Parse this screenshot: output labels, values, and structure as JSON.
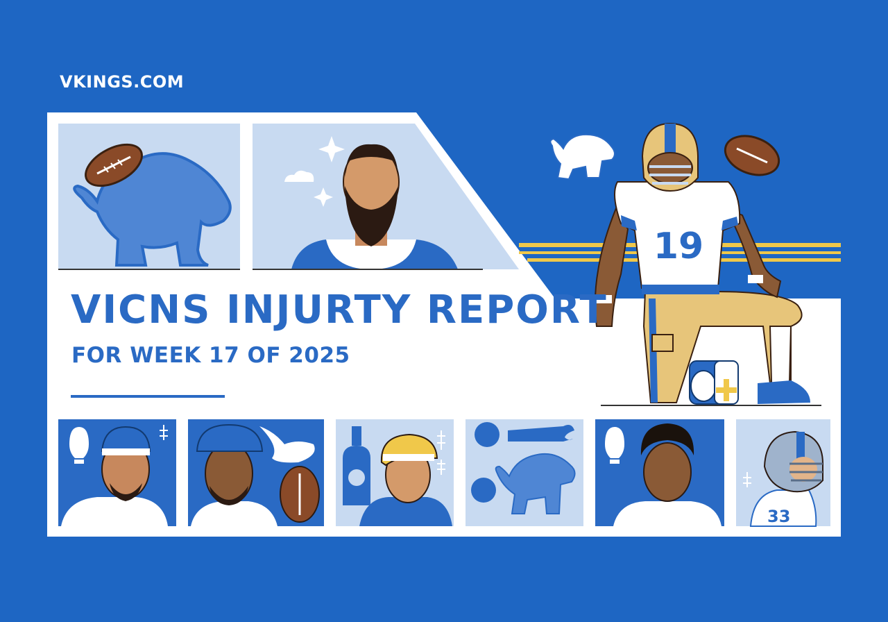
{
  "site": {
    "label": "VKINGS.COM"
  },
  "header": {
    "title": "VICNS INJURTY REPORT",
    "subtitle": "FOR WEEK 17 OF 2025"
  },
  "hero": {
    "jersey_number": "19"
  },
  "thumbnails": {
    "jersey_number": "33"
  },
  "colors": {
    "background": "#1e66c3",
    "card": "#ffffff",
    "accent_blue": "#2a6ac4",
    "light_blue": "#c8daf1",
    "gold": "#f0c84a"
  }
}
